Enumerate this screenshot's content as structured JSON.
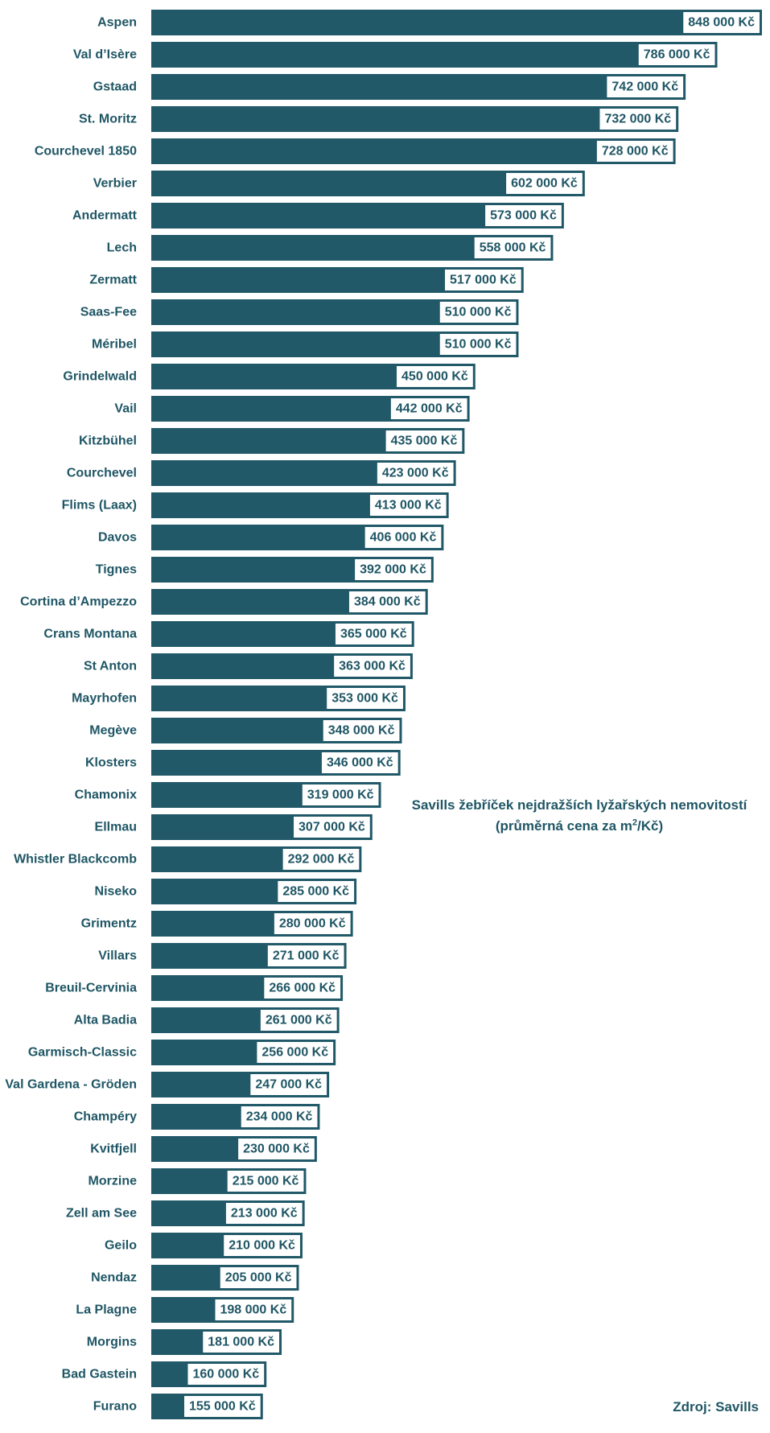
{
  "chart_data": {
    "type": "bar",
    "orientation": "horizontal",
    "title_line1": "Savills žebříček nejdražších lyžařských nemovitostí",
    "title_line2_pre": "(průměrná cena za m",
    "title_line2_sup": "2",
    "title_line2_post": "/Kč)",
    "source": "Zdroj: Savills",
    "bar_color": "#215968",
    "text_color": "#1f5665",
    "grid": false,
    "legend": "none",
    "xlim": [
      0,
      848000
    ],
    "categories": [
      "Aspen",
      "Val d’Isère",
      "Gstaad",
      "St. Moritz",
      "Courchevel 1850",
      "Verbier",
      "Andermatt",
      "Lech",
      "Zermatt",
      "Saas-Fee",
      "Méribel",
      "Grindelwald",
      "Vail",
      "Kitzbühel",
      "Courchevel",
      "Flims (Laax)",
      "Davos",
      "Tignes",
      "Cortina d’Ampezzo",
      "Crans Montana",
      "St Anton",
      "Mayrhofen",
      "Megève",
      "Klosters",
      "Chamonix",
      "Ellmau",
      "Whistler Blackcomb",
      "Niseko",
      "Grimentz",
      "Villars",
      "Breuil-Cervinia",
      "Alta Badia",
      "Garmisch-Classic",
      "Val Gardena - Gröden",
      "Champéry",
      "Kvitfjell",
      "Morzine",
      "Zell am See",
      "Geilo",
      "Nendaz",
      "La Plagne",
      "Morgins",
      "Bad Gastein",
      "Furano"
    ],
    "values": [
      848000,
      786000,
      742000,
      732000,
      728000,
      602000,
      573000,
      558000,
      517000,
      510000,
      510000,
      450000,
      442000,
      435000,
      423000,
      413000,
      406000,
      392000,
      384000,
      365000,
      363000,
      353000,
      348000,
      346000,
      319000,
      307000,
      292000,
      285000,
      280000,
      271000,
      266000,
      261000,
      256000,
      247000,
      234000,
      230000,
      215000,
      213000,
      210000,
      205000,
      198000,
      181000,
      160000,
      155000
    ],
    "value_labels": [
      "848 000 Kč",
      "786 000 Kč",
      "742 000 Kč",
      "732 000 Kč",
      "728 000 Kč",
      "602 000 Kč",
      "573 000 Kč",
      "558 000 Kč",
      "517 000 Kč",
      "510 000 Kč",
      "510 000 Kč",
      "450 000 Kč",
      "442 000 Kč",
      "435 000 Kč",
      "423 000 Kč",
      "413 000 Kč",
      "406 000 Kč",
      "392 000 Kč",
      "384 000 Kč",
      "365 000 Kč",
      "363 000 Kč",
      "353 000 Kč",
      "348 000 Kč",
      "346 000 Kč",
      "319 000 Kč",
      "307 000 Kč",
      "292 000 Kč",
      "285 000 Kč",
      "280 000 Kč",
      "271 000 Kč",
      "266 000 Kč",
      "261 000 Kč",
      "256 000 Kč",
      "247 000 Kč",
      "234 000 Kč",
      "230 000 Kč",
      "215 000 Kč",
      "213 000 Kč",
      "210 000 Kč",
      "205 000 Kč",
      "198 000 Kč",
      "181 000 Kč",
      "160 000 Kč",
      "155 000 Kč"
    ]
  }
}
